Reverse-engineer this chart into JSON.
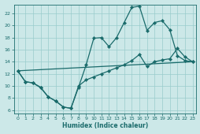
{
  "xlabel": "Humidex (Indice chaleur)",
  "xlim": [
    -0.5,
    23.5
  ],
  "ylim": [
    5.5,
    23.5
  ],
  "yticks": [
    6,
    8,
    10,
    12,
    14,
    16,
    18,
    20,
    22
  ],
  "xticks": [
    0,
    1,
    2,
    3,
    4,
    5,
    6,
    7,
    8,
    9,
    10,
    11,
    12,
    13,
    14,
    15,
    16,
    17,
    18,
    19,
    20,
    21,
    22,
    23
  ],
  "bg_color": "#cce8e8",
  "grid_color": "#99cccc",
  "line_color": "#1a6b6b",
  "line1_x": [
    0,
    1,
    2,
    3,
    4,
    5,
    6,
    7,
    8,
    9,
    10,
    11,
    12,
    13,
    14,
    15,
    16,
    17,
    18,
    19,
    20,
    21,
    22,
    23
  ],
  "line1_y": [
    12.5,
    10.7,
    10.5,
    9.7,
    8.2,
    7.5,
    6.5,
    6.3,
    9.8,
    13.5,
    17.9,
    18.0,
    16.5,
    18.0,
    20.5,
    23.0,
    23.2,
    19.2,
    20.5,
    20.8,
    19.3,
    15.0,
    14.2,
    14.0
  ],
  "line2_x": [
    0,
    1,
    2,
    3,
    4,
    5,
    6,
    7,
    8,
    9,
    10,
    11,
    12,
    13,
    14,
    15,
    16,
    17,
    18,
    19,
    20,
    21,
    22,
    23
  ],
  "line2_y": [
    12.5,
    10.7,
    10.5,
    9.8,
    8.2,
    7.5,
    6.5,
    6.3,
    10.0,
    11.0,
    11.5,
    12.0,
    12.5,
    13.0,
    13.5,
    14.2,
    15.2,
    13.2,
    14.0,
    14.3,
    14.5,
    16.2,
    14.8,
    14.0
  ],
  "line3_x": [
    0,
    23
  ],
  "line3_y": [
    12.5,
    14.0
  ],
  "figwidth": 2.55,
  "figheight": 1.7,
  "dpi": 100
}
